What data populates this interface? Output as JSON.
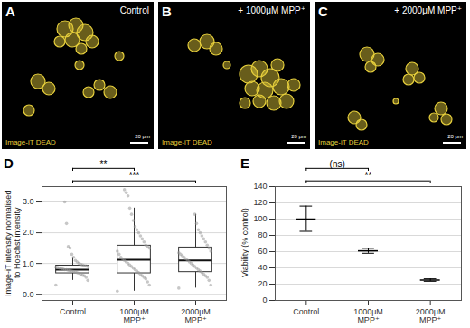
{
  "images": [
    {
      "letter": "A",
      "label": "Control",
      "stain": "Image-iT DEAD",
      "scale_bar": "20 μm",
      "stain_color": "#e6cf3c"
    },
    {
      "letter": "B",
      "label": "+ 1000μM MPP⁺",
      "stain": "Image-iT DEAD",
      "scale_bar": "20 μm",
      "stain_color": "#e6cf3c"
    },
    {
      "letter": "C",
      "label": "+ 2000μM MPP⁺",
      "stain": "Image-iT DEAD",
      "scale_bar": "20 μm",
      "stain_color": "#e6cf3c"
    }
  ],
  "chart_data": [
    {
      "type": "box",
      "title": "D",
      "y_label": "Image-iT intensity normalised to Hoechst intensity",
      "categories": [
        "Control",
        "1000μM MPP⁺",
        "2000μM MPP⁺"
      ],
      "whisker_low": [
        0.45,
        0.1,
        0.2
      ],
      "q1": [
        0.68,
        0.68,
        0.72
      ],
      "median": [
        0.8,
        1.12,
        1.1
      ],
      "q3": [
        0.93,
        1.58,
        1.52
      ],
      "whisker_high": [
        1.2,
        2.8,
        2.6
      ],
      "points": [
        [
          0.3,
          0.45,
          0.55,
          0.6,
          0.62,
          0.65,
          0.68,
          0.7,
          0.72,
          0.74,
          0.75,
          0.77,
          0.78,
          0.8,
          0.8,
          0.82,
          0.84,
          0.85,
          0.87,
          0.88,
          0.9,
          0.92,
          0.93,
          0.95,
          0.97,
          1.0,
          1.05,
          1.1,
          1.2,
          1.3,
          1.5,
          1.55,
          2.3,
          3.0
        ],
        [
          0.1,
          0.3,
          0.4,
          0.5,
          0.55,
          0.6,
          0.65,
          0.7,
          0.75,
          0.8,
          0.85,
          0.9,
          0.95,
          1.0,
          1.05,
          1.1,
          1.15,
          1.2,
          1.3,
          1.4,
          1.5,
          1.55,
          1.6,
          1.7,
          1.8,
          1.9,
          2.0,
          2.1,
          2.2,
          2.4,
          2.6,
          2.8,
          3.2,
          3.3,
          3.4
        ],
        [
          0.2,
          0.3,
          0.45,
          0.55,
          0.6,
          0.65,
          0.7,
          0.75,
          0.8,
          0.85,
          0.9,
          0.95,
          1.0,
          1.05,
          1.1,
          1.15,
          1.2,
          1.25,
          1.3,
          1.35,
          1.4,
          1.5,
          1.6,
          1.7,
          1.8,
          1.9,
          2.0,
          2.1,
          2.3,
          2.6
        ]
      ],
      "color": "#999999",
      "ylim": [
        -0.2,
        3.5
      ],
      "yticks": [
        0,
        1,
        2,
        3
      ],
      "grid": true,
      "annotations": [
        {
          "from": "Control",
          "to": "1000μM MPP⁺",
          "text": "**"
        },
        {
          "from": "Control",
          "to": "2000μM MPP⁺",
          "text": "***"
        }
      ]
    },
    {
      "type": "errorbar",
      "title": "E",
      "y_label": "Viability (% control)",
      "categories": [
        "Control",
        "1000μM MPP⁺",
        "2000μM MPP⁺"
      ],
      "values": [
        100,
        61,
        25
      ],
      "error_low": [
        85,
        58,
        23.5
      ],
      "error_high": [
        116,
        64,
        26.5
      ],
      "color": "#000000",
      "ylim": [
        0,
        140
      ],
      "yticks": [
        0,
        20,
        40,
        60,
        80,
        100,
        120,
        140
      ],
      "grid": true,
      "annotations": [
        {
          "from": "Control",
          "to": "1000μM MPP⁺",
          "text": "(ns)"
        },
        {
          "from": "Control",
          "to": "2000μM MPP⁺",
          "text": "**"
        }
      ]
    }
  ]
}
